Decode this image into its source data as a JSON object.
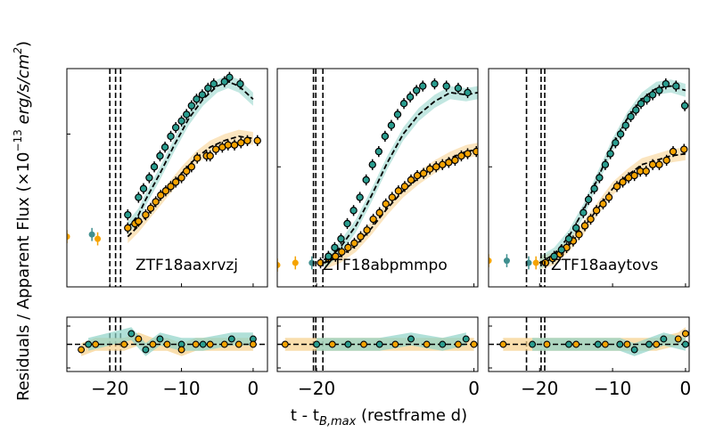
{
  "chart_data": {
    "type": "scatter",
    "ylabel_main": "Residuals / Apparent Flux (×10",
    "ylabel_exp": "−13",
    "ylabel_units": " erg/s/cm",
    "ylabel_sq": "2",
    "ylabel_close": ")",
    "xlabel_prefix": "t - t",
    "xlabel_sub": "B,max",
    "xlabel_suffix": " (restframe d)",
    "colors": {
      "teal": "#2a9d8f",
      "orange": "#f5a300",
      "teal_band": "#8fd3c8",
      "orange_band": "#f7d08a",
      "teal_edge": "#3f8f8f"
    },
    "panels": [
      {
        "name": "ZTF18aaxrvzj",
        "xlim": [
          -26,
          2
        ],
        "ylim": [
          0,
          100
        ],
        "xticks": [
          -20,
          -10,
          0
        ],
        "xticklabels": [
          "−20",
          "−10",
          "0"
        ],
        "yticks_norm": [
          70
        ],
        "vlines": [
          -20,
          -19.2,
          -18.5
        ],
        "model_teal": [
          [
            -17.5,
            27
          ],
          [
            -16,
            33
          ],
          [
            -15,
            40
          ],
          [
            -13,
            52
          ],
          [
            -11,
            65
          ],
          [
            -9,
            77
          ],
          [
            -7,
            86
          ],
          [
            -5,
            92
          ],
          [
            -3.5,
            94
          ],
          [
            -2,
            92
          ],
          [
            0,
            86
          ]
        ],
        "model_orange": [
          [
            -17.5,
            23
          ],
          [
            -16,
            28
          ],
          [
            -14,
            36
          ],
          [
            -12,
            44
          ],
          [
            -10,
            52
          ],
          [
            -8,
            59
          ],
          [
            -6,
            64
          ],
          [
            -4,
            67
          ],
          [
            -2,
            69
          ],
          [
            0,
            68
          ]
        ],
        "pre_points": [
          [
            -26,
            23,
            "orange"
          ],
          [
            -22.5,
            24,
            "teal"
          ],
          [
            -21.7,
            22,
            "orange"
          ]
        ],
        "teal_points": [
          [
            -17.5,
            33
          ],
          [
            -16,
            41
          ],
          [
            -15.3,
            45
          ],
          [
            -14.5,
            50
          ],
          [
            -13.8,
            55
          ],
          [
            -13,
            60
          ],
          [
            -12.3,
            64
          ],
          [
            -11.5,
            69
          ],
          [
            -10.8,
            73
          ],
          [
            -10,
            76
          ],
          [
            -9.3,
            79
          ],
          [
            -8.6,
            83
          ],
          [
            -7.9,
            86
          ],
          [
            -7.1,
            88
          ],
          [
            -6.3,
            91
          ],
          [
            -5.5,
            93
          ],
          [
            -4,
            94
          ],
          [
            -3.3,
            96
          ],
          [
            -1.8,
            93
          ]
        ],
        "orange_points": [
          [
            -17.5,
            27
          ],
          [
            -16.5,
            29
          ],
          [
            -16,
            30
          ],
          [
            -15,
            33
          ],
          [
            -14.3,
            36
          ],
          [
            -13.6,
            39
          ],
          [
            -12.9,
            42
          ],
          [
            -12.2,
            44
          ],
          [
            -11.5,
            46
          ],
          [
            -10.8,
            48
          ],
          [
            -10,
            50
          ],
          [
            -9.3,
            53
          ],
          [
            -8.6,
            55
          ],
          [
            -7.8,
            59
          ],
          [
            -6.5,
            60
          ],
          [
            -6,
            60
          ],
          [
            -5.2,
            63
          ],
          [
            -4.3,
            64
          ],
          [
            -3.5,
            65
          ],
          [
            -2.6,
            65
          ],
          [
            -1.7,
            66
          ],
          [
            -0.8,
            67
          ],
          [
            0.6,
            67
          ]
        ],
        "resid_teal": [
          [
            -23,
            0
          ],
          [
            -17,
            2
          ],
          [
            -15,
            -1
          ],
          [
            -13,
            1
          ],
          [
            -10,
            0
          ],
          [
            -7,
            0
          ],
          [
            -3,
            1
          ],
          [
            0,
            1
          ]
        ],
        "resid_orange": [
          [
            -24,
            -1
          ],
          [
            -22,
            0
          ],
          [
            -18,
            0
          ],
          [
            -16,
            1
          ],
          [
            -14,
            0
          ],
          [
            -12,
            0
          ],
          [
            -10,
            -1
          ],
          [
            -8,
            0
          ],
          [
            -6,
            0
          ],
          [
            -4,
            0
          ],
          [
            -2,
            0
          ],
          [
            0,
            0
          ]
        ]
      },
      {
        "name": "ZTF18abpmmpo",
        "xlim": [
          -25,
          0.5
        ],
        "ylim": [
          0,
          100
        ],
        "xticks": [
          -20,
          0
        ],
        "xticklabels": [
          "−20",
          "0"
        ],
        "yticks_norm": [
          55
        ],
        "vlines": [
          -20.4,
          -20.1,
          -19.2
        ],
        "model_teal": [
          [
            -19,
            11
          ],
          [
            -17,
            18
          ],
          [
            -15,
            28
          ],
          [
            -13,
            42
          ],
          [
            -11,
            57
          ],
          [
            -9,
            70
          ],
          [
            -7,
            79
          ],
          [
            -5,
            85
          ],
          [
            -3,
            89
          ],
          [
            -1,
            88
          ],
          [
            0.5,
            89
          ]
        ],
        "model_orange": [
          [
            -19,
            11
          ],
          [
            -17,
            14
          ],
          [
            -15,
            19
          ],
          [
            -13,
            27
          ],
          [
            -11,
            36
          ],
          [
            -9,
            44
          ],
          [
            -7,
            50
          ],
          [
            -5,
            55
          ],
          [
            -3,
            59
          ],
          [
            -1,
            62
          ],
          [
            0.5,
            63
          ]
        ],
        "pre_points": [
          [
            -25,
            10,
            "orange"
          ],
          [
            -22.7,
            11,
            "orange"
          ],
          [
            -20.6,
            11,
            "teal"
          ]
        ],
        "teal_points": [
          [
            -18.5,
            14
          ],
          [
            -17.7,
            18
          ],
          [
            -16.9,
            22
          ],
          [
            -16.1,
            29
          ],
          [
            -15.3,
            35
          ],
          [
            -14.5,
            41
          ],
          [
            -13.7,
            49
          ],
          [
            -12.9,
            56
          ],
          [
            -12.1,
            62
          ],
          [
            -11.3,
            69
          ],
          [
            -10.5,
            74
          ],
          [
            -9.7,
            79
          ],
          [
            -8.9,
            84
          ],
          [
            -8.1,
            87
          ],
          [
            -7.3,
            90
          ],
          [
            -6.5,
            92
          ],
          [
            -5,
            93
          ],
          [
            -3.5,
            92
          ],
          [
            -2,
            91
          ],
          [
            -0.8,
            89
          ]
        ],
        "orange_points": [
          [
            -19.5,
            11
          ],
          [
            -18.5,
            13
          ],
          [
            -17.6,
            14
          ],
          [
            -16.8,
            16
          ],
          [
            -16,
            18
          ],
          [
            -15.2,
            20
          ],
          [
            -14.4,
            23
          ],
          [
            -13.6,
            26
          ],
          [
            -12.8,
            31
          ],
          [
            -12,
            34
          ],
          [
            -11.2,
            38
          ],
          [
            -10.4,
            41
          ],
          [
            -9.6,
            44
          ],
          [
            -8.8,
            46
          ],
          [
            -8,
            49
          ],
          [
            -7.2,
            51
          ],
          [
            -6.4,
            52
          ],
          [
            -5.6,
            54
          ],
          [
            -4.8,
            55
          ],
          [
            -4,
            56
          ],
          [
            -3.2,
            57
          ],
          [
            -2.4,
            58
          ],
          [
            -1.6,
            60
          ],
          [
            -0.8,
            61
          ],
          [
            0.3,
            62
          ]
        ],
        "resid_teal": [
          [
            -20,
            0
          ],
          [
            -16,
            0
          ],
          [
            -12,
            0
          ],
          [
            -8,
            1
          ],
          [
            -4,
            0
          ],
          [
            -1,
            1
          ]
        ],
        "resid_orange": [
          [
            -24,
            0
          ],
          [
            -18,
            0
          ],
          [
            -14,
            0
          ],
          [
            -10,
            0
          ],
          [
            -6,
            0
          ],
          [
            -2,
            0
          ],
          [
            0,
            0
          ]
        ]
      },
      {
        "name": "ZTF18aaytovs",
        "xlim": [
          -27,
          0.5
        ],
        "ylim": [
          0,
          100
        ],
        "xticks": [
          -20,
          -10,
          0
        ],
        "xticklabels": [
          "−20",
          "−10",
          "0"
        ],
        "yticks_norm": [
          55
        ],
        "vlines": [
          -21.8,
          -19.8,
          -19.3
        ],
        "model_teal": [
          [
            -20,
            11
          ],
          [
            -18,
            15
          ],
          [
            -16,
            23
          ],
          [
            -14,
            35
          ],
          [
            -12,
            50
          ],
          [
            -10,
            65
          ],
          [
            -8,
            77
          ],
          [
            -6,
            86
          ],
          [
            -4,
            91
          ],
          [
            -2,
            92
          ],
          [
            0,
            90
          ]
        ],
        "model_orange": [
          [
            -20,
            11
          ],
          [
            -18,
            13
          ],
          [
            -16,
            19
          ],
          [
            -14,
            27
          ],
          [
            -12,
            36
          ],
          [
            -10,
            45
          ],
          [
            -8,
            51
          ],
          [
            -6,
            56
          ],
          [
            -4,
            58
          ],
          [
            -2,
            60
          ],
          [
            0,
            61
          ]
        ],
        "pre_points": [
          [
            -27,
            12,
            "orange"
          ],
          [
            -24.5,
            12,
            "teal"
          ],
          [
            -21.5,
            11,
            "teal"
          ],
          [
            -20.5,
            11,
            "orange"
          ]
        ],
        "teal_points": [
          [
            -18,
            14
          ],
          [
            -17,
            17
          ],
          [
            -16,
            22
          ],
          [
            -15,
            27
          ],
          [
            -14,
            34
          ],
          [
            -13.3,
            40
          ],
          [
            -12.5,
            45
          ],
          [
            -11.8,
            50
          ],
          [
            -11,
            56
          ],
          [
            -10.3,
            61
          ],
          [
            -9.6,
            66
          ],
          [
            -8.9,
            70
          ],
          [
            -8.2,
            74
          ],
          [
            -7.5,
            78
          ],
          [
            -6.8,
            81
          ],
          [
            -6.1,
            84
          ],
          [
            -5.3,
            86
          ],
          [
            -4.5,
            88
          ],
          [
            -3.6,
            90
          ],
          [
            -2.7,
            93
          ],
          [
            -1.3,
            92
          ],
          [
            -0.1,
            83
          ]
        ],
        "orange_points": [
          [
            -19.2,
            11
          ],
          [
            -18.2,
            13
          ],
          [
            -17.2,
            15
          ],
          [
            -16.3,
            18
          ],
          [
            -15.4,
            21
          ],
          [
            -14.6,
            24
          ],
          [
            -13.8,
            28
          ],
          [
            -13,
            31
          ],
          [
            -12.2,
            35
          ],
          [
            -11.3,
            38
          ],
          [
            -10.5,
            41
          ],
          [
            -9.4,
            46
          ],
          [
            -8.6,
            48
          ],
          [
            -7.8,
            50
          ],
          [
            -7,
            51
          ],
          [
            -6.2,
            53
          ],
          [
            -5.4,
            53
          ],
          [
            -4.5,
            56
          ],
          [
            -3.6,
            56
          ],
          [
            -2.6,
            58
          ],
          [
            -1.7,
            62
          ],
          [
            -0.2,
            63
          ]
        ],
        "resid_teal": [
          [
            -21,
            0
          ],
          [
            -16,
            0
          ],
          [
            -12,
            0
          ],
          [
            -9,
            0
          ],
          [
            -7,
            -1
          ],
          [
            -5,
            0
          ],
          [
            -3,
            1
          ],
          [
            0,
            0
          ]
        ],
        "resid_orange": [
          [
            -25,
            0
          ],
          [
            -19,
            0
          ],
          [
            -15,
            0
          ],
          [
            -11,
            0
          ],
          [
            -8,
            0
          ],
          [
            -4,
            0
          ],
          [
            -1,
            1
          ],
          [
            0,
            2
          ]
        ]
      }
    ]
  }
}
